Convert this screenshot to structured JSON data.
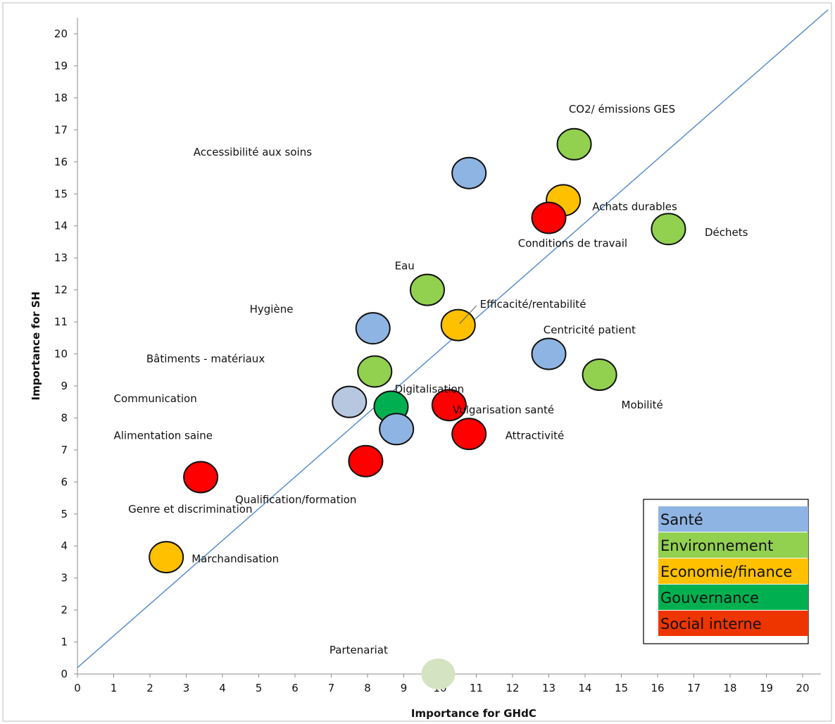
{
  "chart_data": {
    "type": "scatter",
    "title": "",
    "xlabel": "Importance for GHdC",
    "ylabel": "Importance for SH",
    "xlim": [
      0,
      20.5
    ],
    "ylim": [
      0,
      20.5
    ],
    "xticks": [
      "0",
      "1",
      "2",
      "3",
      "4",
      "5",
      "6",
      "7",
      "8",
      "9",
      "10",
      "11",
      "12",
      "13",
      "14",
      "15",
      "16",
      "17",
      "18",
      "19",
      "20"
    ],
    "yticks": [
      "0",
      "1",
      "2",
      "3",
      "4",
      "5",
      "6",
      "7",
      "8",
      "9",
      "10",
      "11",
      "12",
      "13",
      "14",
      "15",
      "16",
      "17",
      "18",
      "19",
      "20"
    ],
    "grid": false,
    "diagonal_line": {
      "from": [
        0,
        0.2
      ],
      "to": [
        20.7,
        20.75
      ],
      "color": "#5B8FC9"
    },
    "legend_placement": "bottom-right",
    "legend": [
      {
        "label": "Santé",
        "color": "#8EB4E3"
      },
      {
        "label": "Environnement",
        "color": "#92D050"
      },
      {
        "label": "Economie/finance",
        "color": "#FFC000"
      },
      {
        "label": "Gouvernance",
        "color": "#00B050"
      },
      {
        "label": "Social interne",
        "color": "#EE3500"
      }
    ],
    "points": [
      {
        "label": "CO2/ émissions GES",
        "x": 13.7,
        "y": 16.55,
        "color": "#92D050",
        "anchor": "start",
        "dx": -0.15,
        "dy": 1.1
      },
      {
        "label": "Accessibilité aux soins",
        "x": 10.8,
        "y": 15.65,
        "color": "#8EB4E3",
        "anchor": "start",
        "dx": -7.6,
        "dy": 0.65
      },
      {
        "label": "Achats durables",
        "x": 13.4,
        "y": 14.8,
        "color": "#FFC000",
        "anchor": "start",
        "dx": 0.8,
        "dy": -0.2
      },
      {
        "label": "Conditions de travail",
        "x": 13.0,
        "y": 14.25,
        "color": "#FF0000",
        "anchor": "start",
        "dx": -0.85,
        "dy": -0.8
      },
      {
        "label": "Déchets",
        "x": 16.3,
        "y": 13.9,
        "color": "#92D050",
        "anchor": "start",
        "dx": 1.0,
        "dy": -0.1
      },
      {
        "label": "Eau",
        "x": 9.65,
        "y": 12.0,
        "color": "#92D050",
        "anchor": "start",
        "dx": -0.9,
        "dy": 0.75
      },
      {
        "label": "Efficacité/rentabilité",
        "x": 10.5,
        "y": 10.9,
        "color": "#FFC000",
        "anchor": "start",
        "dx": 0.6,
        "dy": 0.65
      },
      {
        "label": "Hygiène",
        "x": 8.15,
        "y": 10.8,
        "color": "#8EB4E3",
        "anchor": "start",
        "dx": -3.4,
        "dy": 0.6
      },
      {
        "label": "Centricité patient",
        "x": 13.0,
        "y": 10.0,
        "color": "#8EB4E3",
        "anchor": "start",
        "dx": -0.15,
        "dy": 0.75
      },
      {
        "label": "Mobilité",
        "x": 14.4,
        "y": 9.35,
        "color": "#92D050",
        "anchor": "start",
        "dx": 0.6,
        "dy": -0.95
      },
      {
        "label": "Bâtiments - matériaux",
        "x": 8.2,
        "y": 9.45,
        "color": "#92D050",
        "anchor": "start",
        "dx": -6.3,
        "dy": 0.4
      },
      {
        "label": "Communication",
        "x": 7.5,
        "y": 8.5,
        "color": "#B8C7E0",
        "anchor": "start",
        "dx": -6.5,
        "dy": 0.1
      },
      {
        "label": "Digitalisation",
        "x": 8.65,
        "y": 8.35,
        "color": "#00B050",
        "anchor": "start",
        "dx": 0.1,
        "dy": 0.55
      },
      {
        "label": "Vulgarisation santé",
        "x": 10.25,
        "y": 8.4,
        "color": "#FF0000",
        "anchor": "start",
        "dx": 0.1,
        "dy": -0.15
      },
      {
        "label": "Alimentation saine",
        "x": 8.8,
        "y": 7.65,
        "color": "#8EB4E3",
        "anchor": "start",
        "dx": -7.8,
        "dy": -0.2
      },
      {
        "label": "Attractivité",
        "x": 10.8,
        "y": 7.5,
        "color": "#FF0000",
        "anchor": "start",
        "dx": 1.0,
        "dy": -0.05
      },
      {
        "label": "Qualification/formation",
        "x": 7.95,
        "y": 6.65,
        "color": "#FF0000",
        "anchor": "start",
        "dx": -3.6,
        "dy": -1.2
      },
      {
        "label": "Genre et discrimination",
        "x": 3.4,
        "y": 6.15,
        "color": "#FF0000",
        "anchor": "start",
        "dx": -2.0,
        "dy": -1.0
      },
      {
        "label": "Marchandisation",
        "x": 2.45,
        "y": 3.65,
        "color": "#FFC000",
        "anchor": "start",
        "dx": 0.7,
        "dy": -0.05
      },
      {
        "label": "Partenariat",
        "x": 9.95,
        "y": 0.0,
        "color": "#D4E3C2",
        "anchor": "start",
        "dx": -3.0,
        "dy": 0.75
      }
    ]
  }
}
